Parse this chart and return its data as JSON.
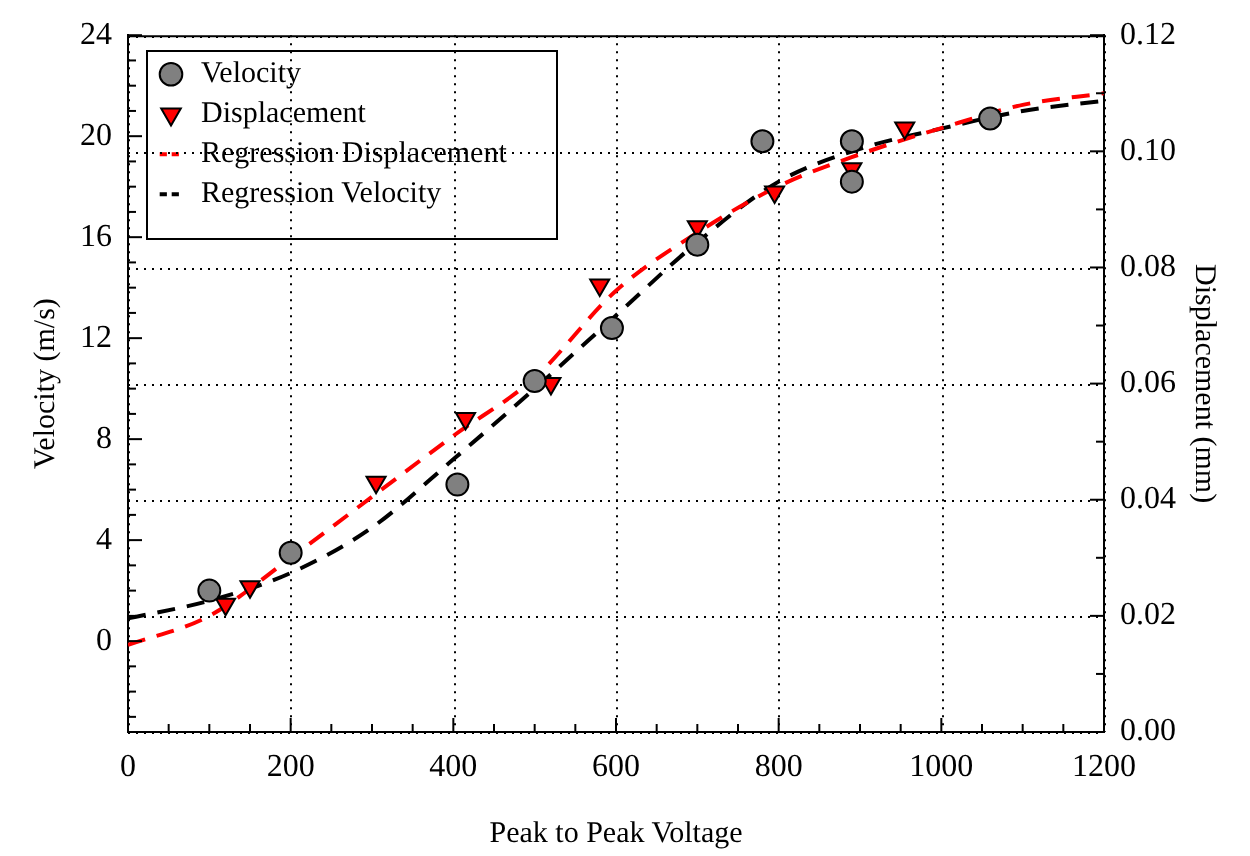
{
  "chart_data": {
    "type": "scatter",
    "xlabel": "Peak to Peak Voltage",
    "ylabel": "Velocity (m/s)",
    "y2label": "Displacement (mm)",
    "xlim": [
      0,
      1200
    ],
    "xticks": [
      0,
      {
        "value": 50,
        "label": null
      },
      {
        "value": 100,
        "label": null
      },
      {
        "value": 150,
        "label": null
      },
      200,
      {
        "value": 250,
        "label": null
      },
      {
        "value": 300,
        "label": null
      },
      {
        "value": 350,
        "label": null
      },
      400,
      {
        "value": 450,
        "label": null
      },
      {
        "value": 500,
        "label": null
      },
      {
        "value": 550,
        "label": null
      },
      600,
      {
        "value": 650,
        "label": null
      },
      {
        "value": 700,
        "label": null
      },
      {
        "value": 750,
        "label": null
      },
      800,
      {
        "value": 850,
        "label": null
      },
      {
        "value": 900,
        "label": null
      },
      {
        "value": 950,
        "label": null
      },
      1000,
      {
        "value": 1050,
        "label": null
      },
      {
        "value": 1100,
        "label": null
      },
      {
        "value": 1150,
        "label": null
      },
      1200
    ],
    "ylim": [
      -3.6,
      24
    ],
    "yticks": [
      {
        "value": -3,
        "label": null
      },
      {
        "value": -2,
        "label": null
      },
      {
        "value": -1,
        "label": null
      },
      0,
      {
        "value": 1,
        "label": null
      },
      {
        "value": 2,
        "label": null
      },
      {
        "value": 3,
        "label": null
      },
      4,
      {
        "value": 5,
        "label": null
      },
      {
        "value": 6,
        "label": null
      },
      {
        "value": 7,
        "label": null
      },
      8,
      {
        "value": 9,
        "label": null
      },
      {
        "value": 10,
        "label": null
      },
      {
        "value": 11,
        "label": null
      },
      12,
      {
        "value": 13,
        "label": null
      },
      {
        "value": 14,
        "label": null
      },
      {
        "value": 15,
        "label": null
      },
      16,
      {
        "value": 17,
        "label": null
      },
      {
        "value": 18,
        "label": null
      },
      {
        "value": 19,
        "label": null
      },
      20,
      {
        "value": 21,
        "label": null
      },
      {
        "value": 22,
        "label": null
      },
      {
        "value": 23,
        "label": null
      },
      24
    ],
    "y2lim": [
      0,
      0.12
    ],
    "y2ticks": [
      {
        "value": 0,
        "label": "0.00"
      },
      {
        "value": 0.01,
        "label": null
      },
      {
        "value": 0.02,
        "label": "0.02"
      },
      {
        "value": 0.03,
        "label": null
      },
      {
        "value": 0.04,
        "label": "0.04"
      },
      {
        "value": 0.05,
        "label": null
      },
      {
        "value": 0.06,
        "label": "0.06"
      },
      {
        "value": 0.07,
        "label": null
      },
      {
        "value": 0.08,
        "label": "0.08"
      },
      {
        "value": 0.09,
        "label": null
      },
      {
        "value": 0.1,
        "label": "0.10"
      },
      {
        "value": 0.11,
        "label": null
      },
      {
        "value": 0.12,
        "label": "0.12"
      }
    ],
    "grid": true,
    "legend": "top left",
    "series": [
      {
        "name": "Velocity",
        "marker": "circle",
        "color": "#808080",
        "x": [
          100,
          200,
          405,
          500,
          595,
          700,
          780,
          890,
          890,
          1060
        ],
        "values": [
          2.0,
          3.5,
          6.2,
          10.3,
          12.4,
          15.7,
          19.8,
          19.8,
          18.2,
          20.7
        ]
      },
      {
        "name": "Displacement",
        "marker": "triangle",
        "axis": "y2",
        "color": "#ff0000",
        "x": [
          120,
          150,
          305,
          415,
          520,
          580,
          700,
          795,
          890,
          955
        ],
        "values": [
          0.022,
          0.025,
          0.043,
          0.054,
          0.06,
          0.077,
          0.087,
          0.093,
          0.097,
          0.104
        ]
      },
      {
        "name": "Regression Displacement",
        "type": "line",
        "marker": "none",
        "line_style": "dashed",
        "axis": "y2",
        "color": "#ff0000",
        "x": [
          0,
          100,
          200,
          300,
          400,
          500,
          600,
          700,
          800,
          900,
          1000,
          1100,
          1200
        ],
        "values": [
          0.015,
          0.02,
          0.03,
          0.0405,
          0.051,
          0.061,
          0.076,
          0.086,
          0.094,
          0.0995,
          0.104,
          0.108,
          0.11
        ]
      },
      {
        "name": "Regression Velocity",
        "type": "line",
        "marker": "none",
        "line_style": "dashed",
        "color": "#000000",
        "x": [
          0,
          100,
          200,
          300,
          400,
          500,
          600,
          700,
          800,
          900,
          1000,
          1100,
          1200
        ],
        "values": [
          0.9,
          1.6,
          2.7,
          4.5,
          7.2,
          10.0,
          12.9,
          15.8,
          18.2,
          19.5,
          20.3,
          21.0,
          21.4
        ]
      }
    ]
  }
}
